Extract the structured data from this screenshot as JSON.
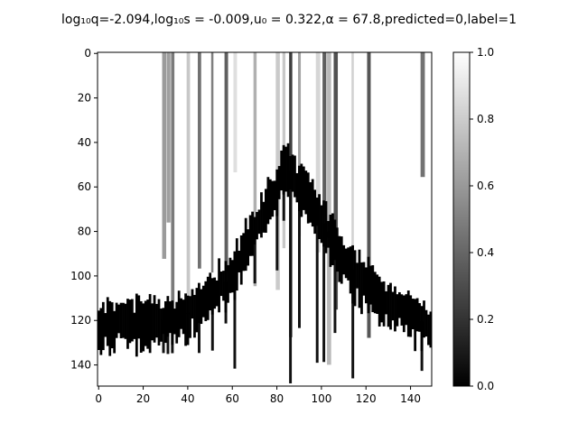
{
  "chart_data": {
    "type": "heatmap",
    "title": "log₁₀q=-2.094,log₁₀s = -0.009,u₀ = 0.322,α = 67.8,predicted=0,label=1",
    "xlabel": "",
    "ylabel": "",
    "x_range": [
      0,
      149
    ],
    "y_range": [
      0,
      149
    ],
    "y_inverted": true,
    "x_ticks": [
      0,
      20,
      40,
      60,
      80,
      100,
      120,
      140
    ],
    "y_ticks": [
      0,
      20,
      40,
      60,
      80,
      100,
      120,
      140
    ],
    "colormap": "gray",
    "color_range": [
      0.0,
      1.0
    ],
    "colorbar_ticks": [
      "0.0",
      "0.2",
      "0.4",
      "0.6",
      "0.8",
      "1.0"
    ],
    "grid": false,
    "description_points": {
      "dark_band_center": [
        [
          0,
          123
        ],
        [
          10,
          122
        ],
        [
          20,
          121
        ],
        [
          30,
          120
        ],
        [
          40,
          117
        ],
        [
          50,
          110
        ],
        [
          60,
          100
        ],
        [
          70,
          80
        ],
        [
          78,
          65
        ],
        [
          84,
          50
        ],
        [
          90,
          60
        ],
        [
          100,
          75
        ],
        [
          110,
          93
        ],
        [
          120,
          105
        ],
        [
          130,
          113
        ],
        [
          140,
          118
        ],
        [
          149,
          123
        ]
      ],
      "vertical_streak_columns": [
        29,
        31,
        33,
        40,
        45,
        51,
        57,
        61,
        70,
        80,
        83,
        86,
        90,
        98,
        101,
        103,
        106,
        114,
        121,
        145
      ]
    }
  }
}
